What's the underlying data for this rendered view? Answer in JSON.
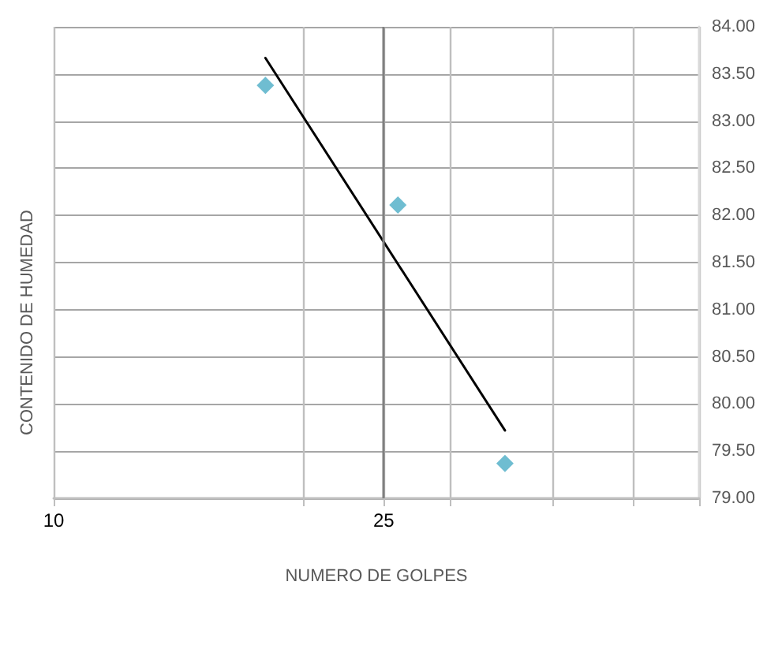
{
  "chart_data": {
    "type": "scatter",
    "xlabel": "NUMERO DE GOLPES",
    "ylabel": "CONTENIDO DE HUMEDAD",
    "log": "x",
    "xlim": [
      10,
      60
    ],
    "xticks": [
      10,
      {
        "value": 20,
        "label": null
      },
      25,
      {
        "value": 30,
        "label": null
      },
      {
        "value": 40,
        "label": null
      },
      {
        "value": 50,
        "label": null
      },
      {
        "value": 60,
        "label": null
      }
    ],
    "ylim": [
      79,
      84
    ],
    "yticks": [
      {
        "value": 79,
        "label": "79.00"
      },
      {
        "value": 79.5,
        "label": "79.50"
      },
      {
        "value": 80,
        "label": "80.00"
      },
      {
        "value": 80.5,
        "label": "80.50"
      },
      {
        "value": 81,
        "label": "81.00"
      },
      {
        "value": 81.5,
        "label": "81.50"
      },
      {
        "value": 82,
        "label": "82.00"
      },
      {
        "value": 82.5,
        "label": "82.50"
      },
      {
        "value": 83,
        "label": "83.00"
      },
      {
        "value": 83.5,
        "label": "83.50"
      },
      {
        "value": 84,
        "label": "84.00"
      }
    ],
    "grid": true,
    "marker": "diamond",
    "series": [
      {
        "color": "#4bacc6",
        "x": [
          18,
          26,
          35
        ],
        "values": [
          83.38,
          82.11,
          79.37
        ]
      },
      {
        "type": "line",
        "color": "#000000",
        "marker": "none",
        "x": [
          18,
          35
        ],
        "values": [
          83.67,
          79.72
        ]
      }
    ],
    "ref_lines": [
      {
        "axis": "x",
        "value": 25,
        "color": "#808080"
      }
    ]
  }
}
